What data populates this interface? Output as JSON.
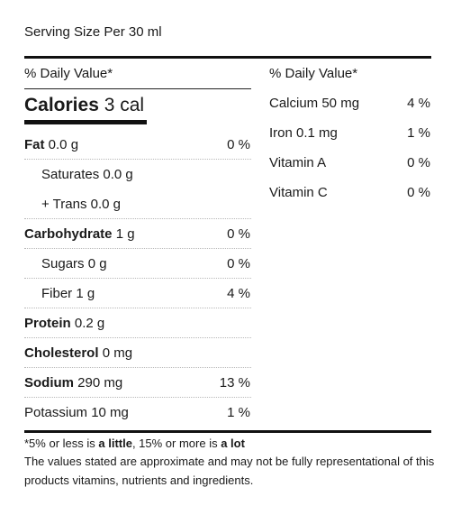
{
  "serving": "Serving Size Per 30 ml",
  "daily_value_header": "% Daily Value*",
  "calories": {
    "label": "Calories",
    "value": "3 cal"
  },
  "left_rows": [
    {
      "name": "Fat",
      "amount": "0.0 g",
      "pct": "0 %"
    },
    {
      "name": "Saturates 0.0 g",
      "pct": ""
    },
    {
      "name": "+ Trans 0.0 g",
      "pct": ""
    },
    {
      "name": "Carbohydrate",
      "amount": "1 g",
      "pct": "0 %"
    },
    {
      "name": "Sugars 0 g",
      "pct": "0 %"
    },
    {
      "name": "Fiber 1 g",
      "pct": "4 %"
    },
    {
      "name": "Protein",
      "amount": "0.2 g",
      "pct": ""
    },
    {
      "name": "Cholesterol",
      "amount": "0 mg",
      "pct": ""
    },
    {
      "name": "Sodium",
      "amount": "290 mg",
      "pct": "13 %"
    },
    {
      "name": "Potassium 10 mg",
      "pct": "1 %"
    }
  ],
  "right_rows": [
    {
      "name": "Calcium 50 mg",
      "pct": "4 %"
    },
    {
      "name": "Iron 0.1 mg",
      "pct": "1 %"
    },
    {
      "name": "Vitamin A",
      "pct": "0 %"
    },
    {
      "name": "Vitamin C",
      "pct": "0 %"
    }
  ],
  "footnote": {
    "part1": "*5% or less is ",
    "bold1": "a little",
    "part2": ", 15% or more is ",
    "bold2": "a lot"
  },
  "disclaimer": "The values stated are approximate and may not be fully representational of this products vitamins, nutrients and ingredients."
}
